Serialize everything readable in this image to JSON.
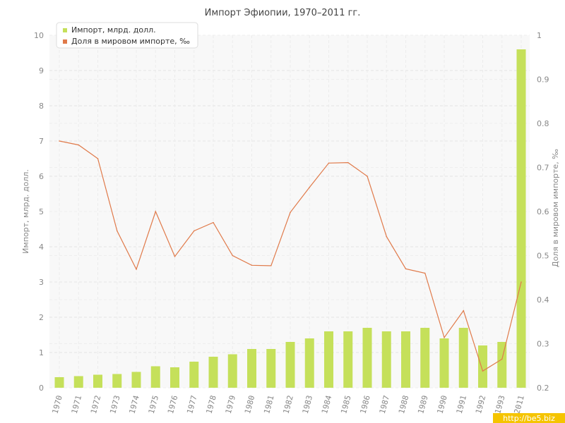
{
  "chart_data": {
    "type": "bar+line",
    "title": "Импорт Эфиопии, 1970–2011 гг.",
    "ylabel_left": "Импорт, млрд. долл.",
    "ylabel_right": "Доля в мировом импорте, ‰",
    "ylim_left": [
      0,
      10
    ],
    "ylim_right": [
      0.2,
      1
    ],
    "yticks_left": [
      "0",
      "1",
      "2",
      "3",
      "4",
      "5",
      "6",
      "7",
      "8",
      "9",
      "10"
    ],
    "yticks_right": [
      "0.2",
      "0.3",
      "0.4",
      "0.5",
      "0.6",
      "0.7",
      "0.8",
      "0.9",
      "1"
    ],
    "categories": [
      "1970",
      "1971",
      "1972",
      "1973",
      "1974",
      "1975",
      "1976",
      "1977",
      "1978",
      "1979",
      "1980",
      "1981",
      "1982",
      "1983",
      "1984",
      "1985",
      "1986",
      "1987",
      "1988",
      "1989",
      "1990",
      "1991",
      "1992",
      "1993",
      "2011"
    ],
    "series": [
      {
        "name": "Импорт, млрд. долл.",
        "type": "bar",
        "axis": "left",
        "color": "#c5e05a",
        "values": [
          0.3,
          0.33,
          0.37,
          0.39,
          0.45,
          0.61,
          0.58,
          0.74,
          0.88,
          0.95,
          1.1,
          1.1,
          1.3,
          1.4,
          1.6,
          1.6,
          1.7,
          1.6,
          1.6,
          1.7,
          1.4,
          1.7,
          1.2,
          1.3,
          9.6
        ]
      },
      {
        "name": "Доля в мировом импорте, ‰",
        "type": "line",
        "axis": "right",
        "color": "#e07a4a",
        "values": [
          0.76,
          0.751,
          0.72,
          0.556,
          0.469,
          0.6,
          0.498,
          0.556,
          0.575,
          0.5,
          0.478,
          0.477,
          0.598,
          0.655,
          0.71,
          0.711,
          0.68,
          0.543,
          0.47,
          0.46,
          0.314,
          0.375,
          0.238,
          0.265,
          0.44
        ]
      }
    ],
    "grid": true,
    "legend_position": "top-left"
  },
  "watermark": "http://be5.biz"
}
